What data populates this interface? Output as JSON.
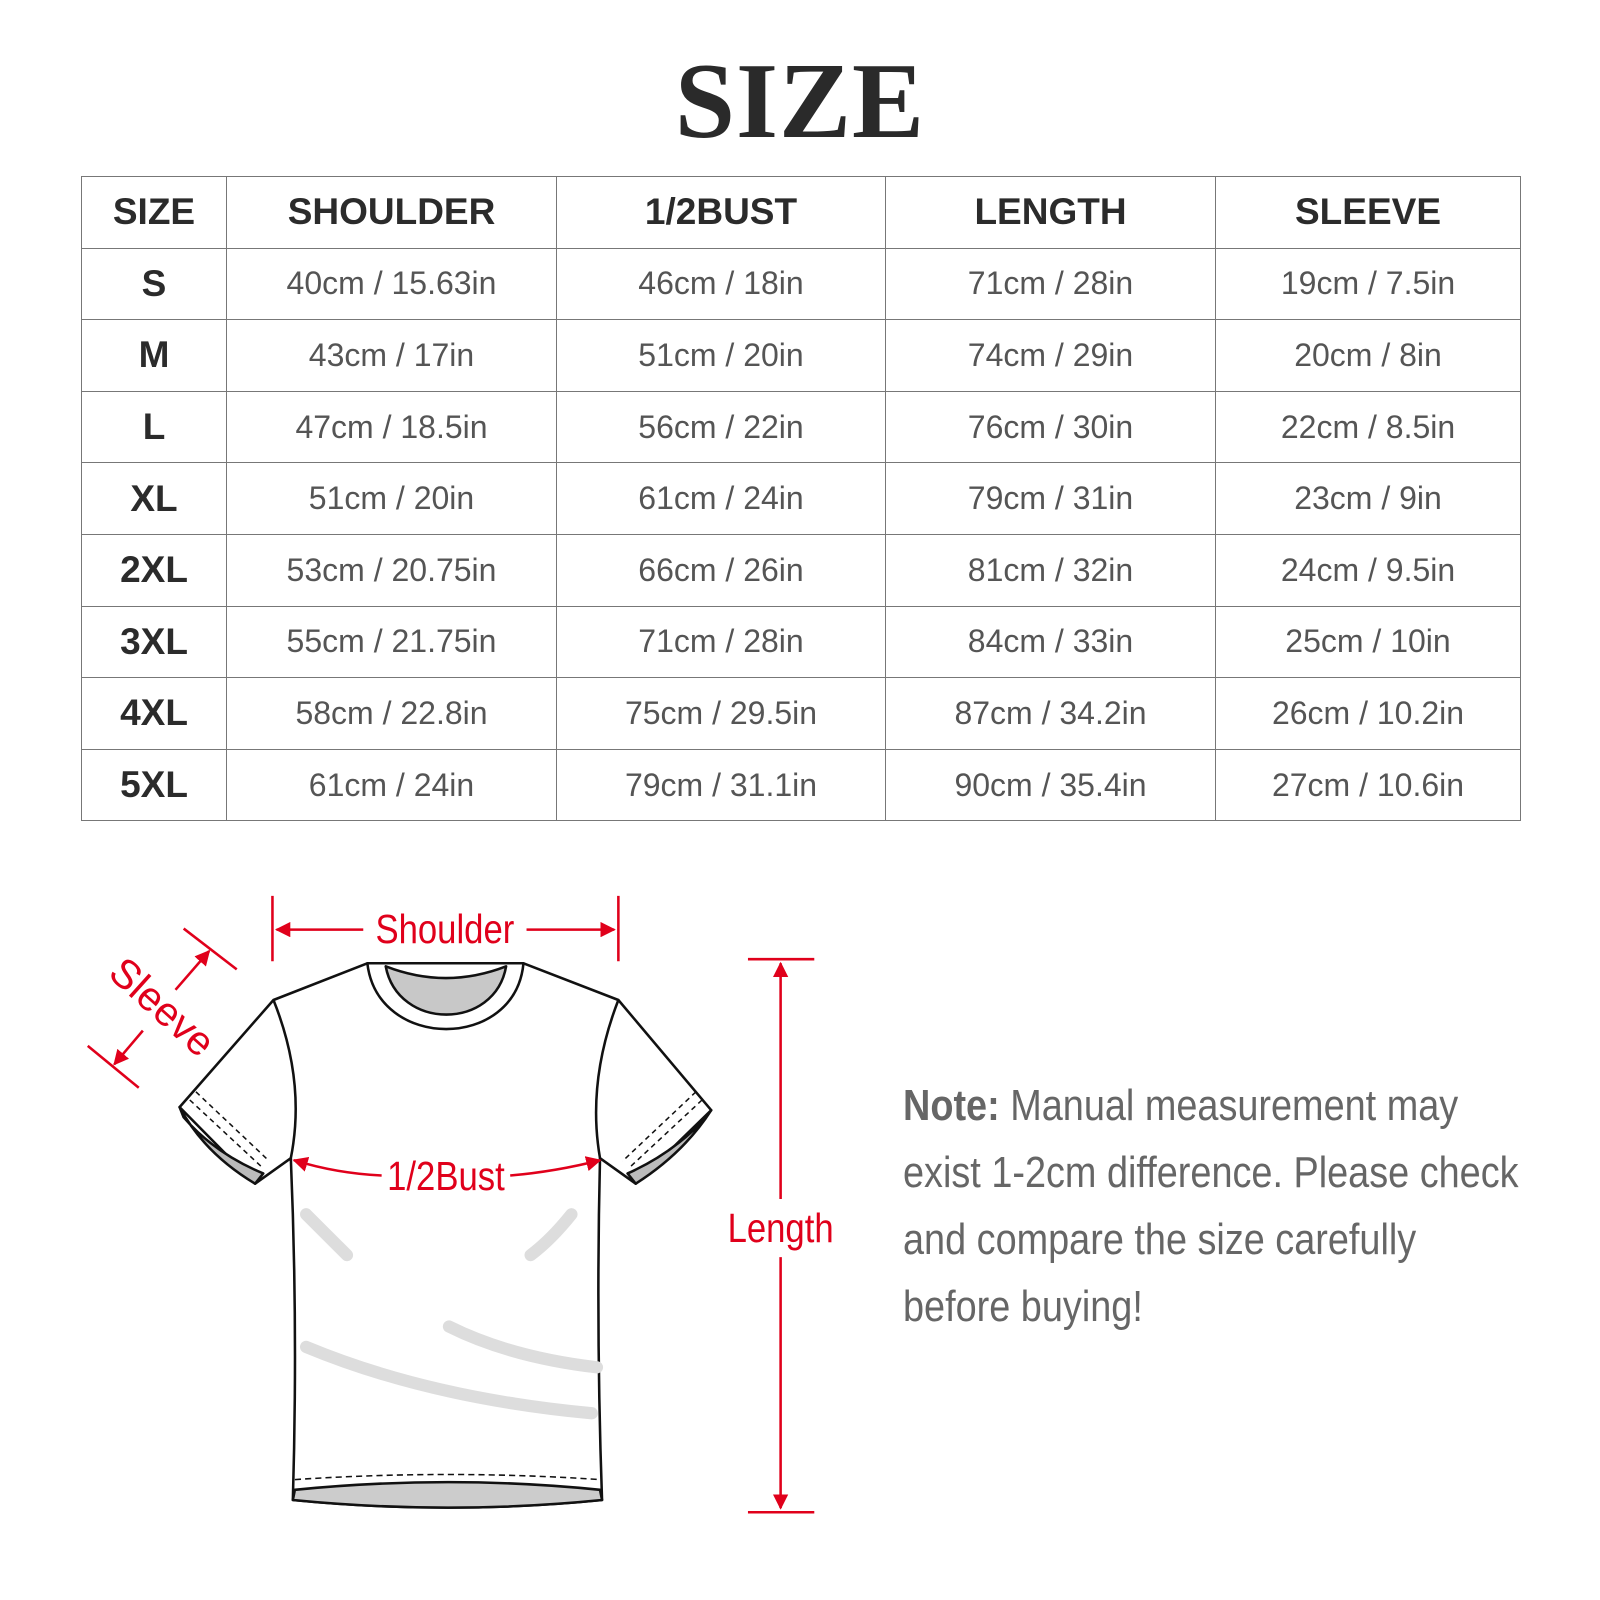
{
  "title": "SIZE",
  "table": {
    "headers": [
      "SIZE",
      "SHOULDER",
      "1/2BUST",
      "LENGTH",
      "SLEEVE"
    ],
    "rows": [
      [
        "S",
        "40cm / 15.63in",
        "46cm / 18in",
        "71cm / 28in",
        "19cm / 7.5in"
      ],
      [
        "M",
        "43cm / 17in",
        "51cm / 20in",
        "74cm / 29in",
        "20cm / 8in"
      ],
      [
        "L",
        "47cm / 18.5in",
        "56cm / 22in",
        "76cm / 30in",
        "22cm / 8.5in"
      ],
      [
        "XL",
        "51cm / 20in",
        "61cm / 24in",
        "79cm / 31in",
        "23cm / 9in"
      ],
      [
        "2XL",
        "53cm / 20.75in",
        "66cm / 26in",
        "81cm / 32in",
        "24cm / 9.5in"
      ],
      [
        "3XL",
        "55cm / 21.75in",
        "71cm / 28in",
        "84cm / 33in",
        "25cm / 10in"
      ],
      [
        "4XL",
        "58cm / 22.8in",
        "75cm / 29.5in",
        "87cm / 34.2in",
        "26cm / 10.2in"
      ],
      [
        "5XL",
        "61cm / 24in",
        "79cm / 31.1in",
        "90cm / 35.4in",
        "27cm / 10.6in"
      ]
    ]
  },
  "diagram": {
    "shoulder": "Shoulder",
    "sleeve": "Sleeve",
    "bust": "1/2Bust",
    "length": "Length",
    "accent": "#e0001b"
  },
  "note": {
    "label": "Note:",
    "text": " Manual measurement may exist 1-2cm difference. Please check and compare the size carefully before buying!"
  }
}
